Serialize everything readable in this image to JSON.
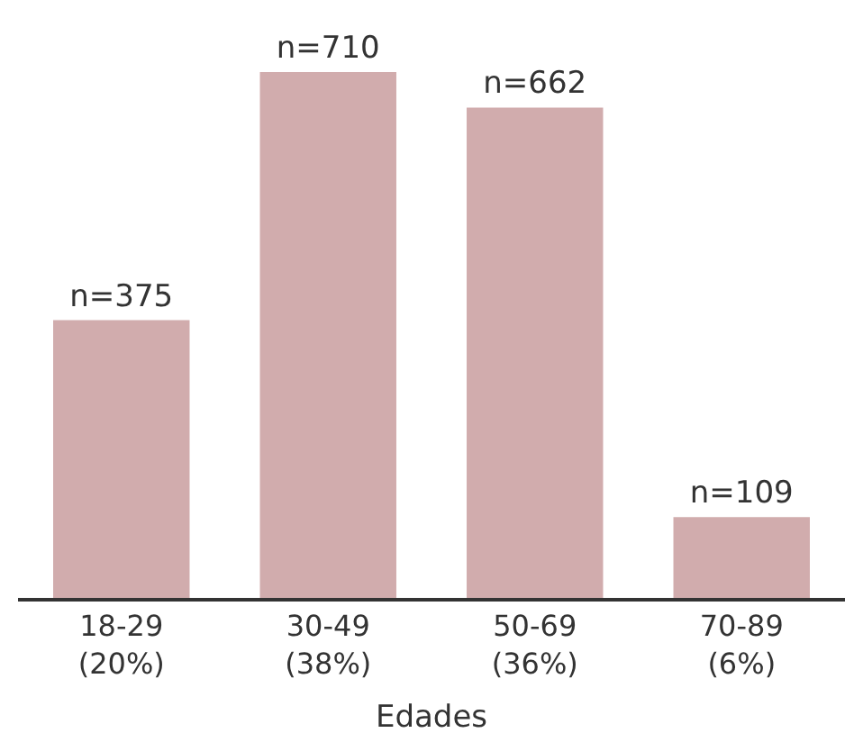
{
  "chart_data": {
    "type": "bar",
    "xlabel": "Edades",
    "categories": [
      "18-29\n(20%)",
      "30-49\n(38%)",
      "50-69\n(36%)",
      "70-89\n(6%)"
    ],
    "values": [
      375,
      710,
      662,
      109
    ],
    "value_labels": [
      "n=375",
      "n=710",
      "n=662",
      "n=109"
    ],
    "color": "#d1acad"
  }
}
